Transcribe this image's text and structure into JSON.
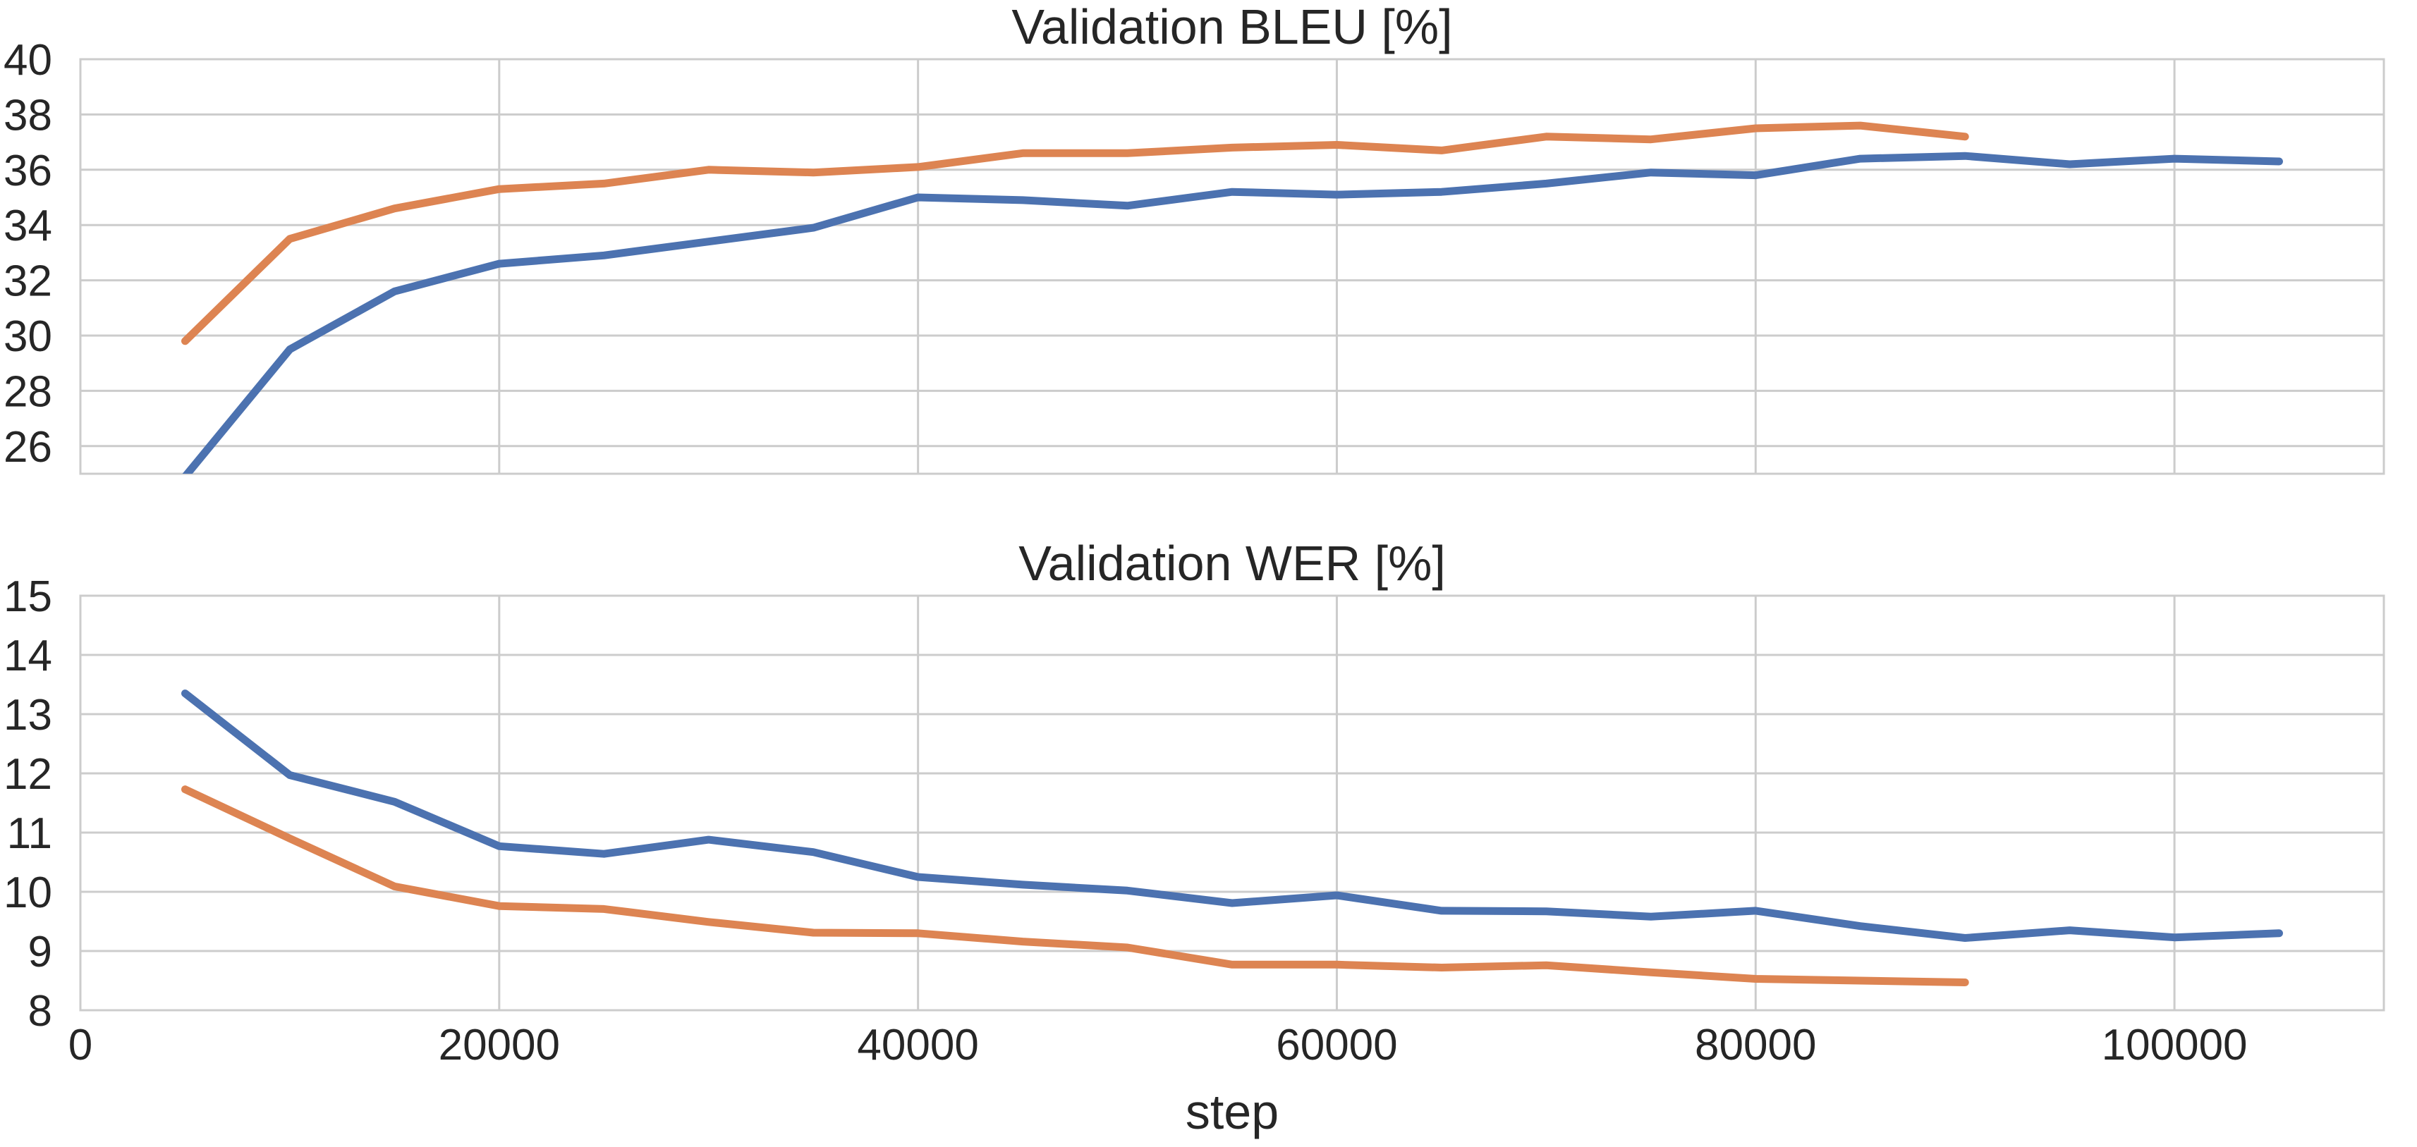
{
  "chart_data": [
    {
      "type": "line",
      "title": "Validation BLEU [%]",
      "xlabel": "",
      "ylabel": "",
      "xlim": [
        0,
        110000
      ],
      "ylim": [
        25,
        40
      ],
      "xticks": [
        0,
        20000,
        40000,
        60000,
        80000,
        100000
      ],
      "yticks": [
        26,
        28,
        30,
        32,
        34,
        36,
        38,
        40
      ],
      "grid": true,
      "show_xtick_labels": false,
      "series": [
        {
          "name": "series-blue",
          "color": "#4c72b0",
          "x": [
            5000,
            10000,
            15000,
            20000,
            25000,
            30000,
            35000,
            40000,
            45000,
            50000,
            55000,
            60000,
            65000,
            70000,
            75000,
            80000,
            85000,
            90000,
            95000,
            100000,
            105000
          ],
          "y": [
            24.9,
            29.5,
            31.6,
            32.6,
            32.9,
            33.4,
            33.9,
            35.0,
            34.9,
            34.7,
            35.2,
            35.1,
            35.2,
            35.5,
            35.9,
            35.8,
            36.4,
            36.5,
            36.2,
            36.4,
            36.3
          ]
        },
        {
          "name": "series-orange",
          "color": "#dd8452",
          "x": [
            5000,
            10000,
            15000,
            20000,
            25000,
            30000,
            35000,
            40000,
            45000,
            50000,
            55000,
            60000,
            65000,
            70000,
            75000,
            80000,
            85000,
            90000
          ],
          "y": [
            29.8,
            33.5,
            34.6,
            35.3,
            35.5,
            36.0,
            35.9,
            36.1,
            36.6,
            36.6,
            36.8,
            36.9,
            36.7,
            37.2,
            37.1,
            37.5,
            37.6,
            37.2
          ]
        }
      ]
    },
    {
      "type": "line",
      "title": "Validation WER [%]",
      "xlabel": "step",
      "ylabel": "",
      "xlim": [
        0,
        110000
      ],
      "ylim": [
        8,
        15
      ],
      "xticks": [
        0,
        20000,
        40000,
        60000,
        80000,
        100000
      ],
      "yticks": [
        8,
        9,
        10,
        11,
        12,
        13,
        14,
        15
      ],
      "grid": true,
      "show_xtick_labels": true,
      "series": [
        {
          "name": "series-blue",
          "color": "#4c72b0",
          "x": [
            5000,
            10000,
            15000,
            20000,
            25000,
            30000,
            35000,
            40000,
            45000,
            50000,
            55000,
            60000,
            65000,
            70000,
            75000,
            80000,
            85000,
            90000,
            95000,
            100000,
            105000
          ],
          "y": [
            13.35,
            11.97,
            11.52,
            10.77,
            10.64,
            10.88,
            10.67,
            10.25,
            10.12,
            10.02,
            9.81,
            9.94,
            9.68,
            9.67,
            9.58,
            9.68,
            9.42,
            9.22,
            9.35,
            9.23,
            9.3
          ]
        },
        {
          "name": "series-orange",
          "color": "#dd8452",
          "x": [
            5000,
            10000,
            15000,
            20000,
            25000,
            30000,
            35000,
            40000,
            45000,
            50000,
            55000,
            60000,
            65000,
            70000,
            75000,
            80000,
            85000,
            90000
          ],
          "y": [
            11.73,
            10.9,
            10.09,
            9.76,
            9.71,
            9.49,
            9.31,
            9.3,
            9.16,
            9.06,
            8.77,
            8.77,
            8.72,
            8.76,
            8.64,
            8.53,
            8.5,
            8.47
          ]
        }
      ]
    }
  ]
}
